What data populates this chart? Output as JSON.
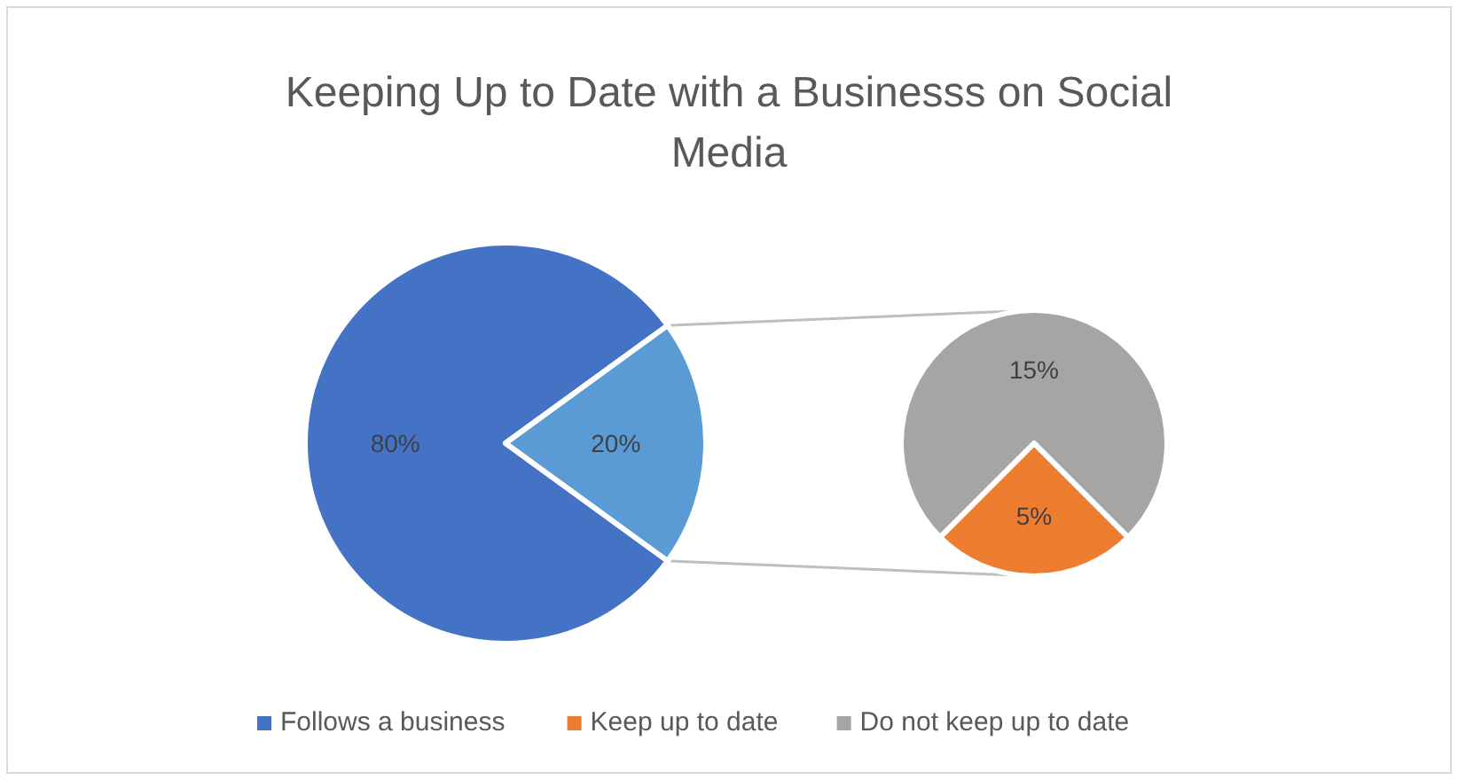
{
  "chart_data": [
    {
      "type": "pie",
      "title": "Keeping Up to Date with a Businesss on Social Media",
      "categories": [
        "Follows a business",
        null
      ],
      "values": [
        80,
        20
      ],
      "value_labels": [
        "80%",
        "20%"
      ],
      "colors": [
        "#4472c4",
        "#5b9bd5"
      ],
      "legend": "bottom"
    },
    {
      "type": "pie",
      "categories": [
        "Keep up to date",
        "Do not keep up to date"
      ],
      "values": [
        5,
        15
      ],
      "value_labels": [
        "5%",
        "15%"
      ],
      "colors": [
        "#ed7d31",
        "#a5a5a5"
      ],
      "legend": "bottom"
    }
  ]
}
